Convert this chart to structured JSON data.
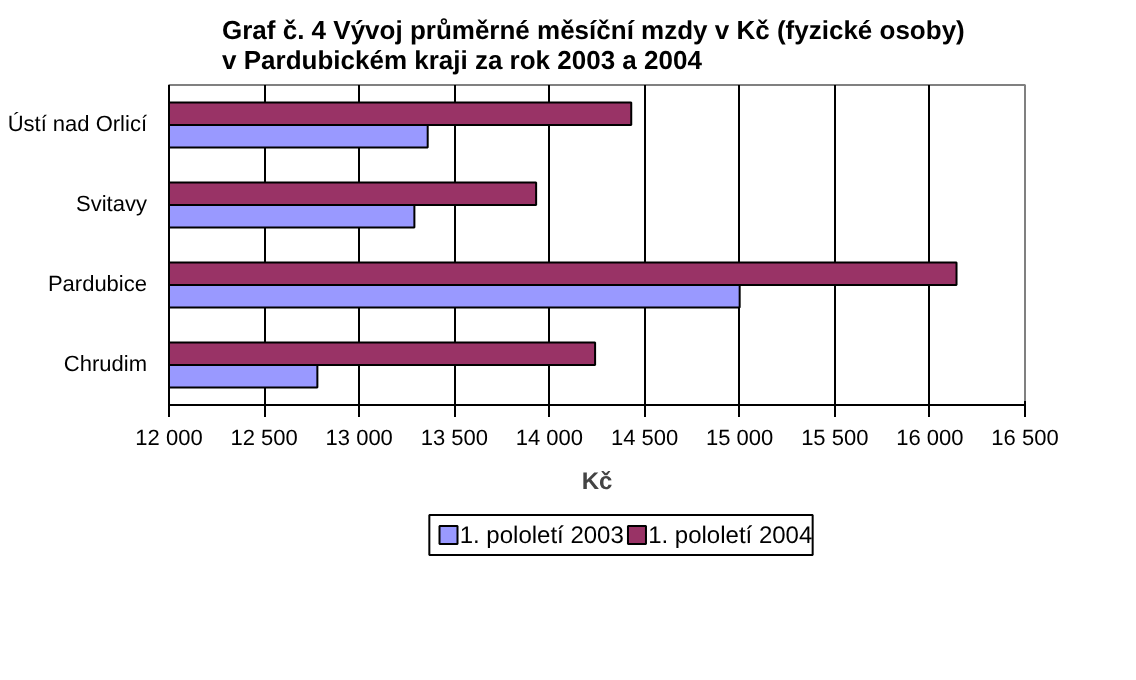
{
  "chart_data": {
    "type": "bar",
    "orientation": "horizontal",
    "title": "Graf č. 4  Vývoj průměrné měsíční mzdy v Kč (fyzické osoby)\nv Pardubickém kraji za rok 2003 a 2004",
    "xlabel": "Kč",
    "categories": [
      "Ústí nad Orlicí",
      "Svitavy",
      "Pardubice",
      "Chrudim"
    ],
    "series": [
      {
        "name": "1. pololetí 2003",
        "color": "#9999ff",
        "values": [
          13360,
          13290,
          15000,
          12780
        ]
      },
      {
        "name": "1. pololetí 2004",
        "color": "#993366",
        "values": [
          14430,
          13930,
          16140,
          14240
        ]
      }
    ],
    "xlim": [
      12000,
      16500
    ],
    "xticks": [
      {
        "value": 12000,
        "label": "12 000"
      },
      {
        "value": 12500,
        "label": "12 500"
      },
      {
        "value": 13000,
        "label": "13 000"
      },
      {
        "value": 13500,
        "label": "13 500"
      },
      {
        "value": 14000,
        "label": "14 000"
      },
      {
        "value": 14500,
        "label": "14 500"
      },
      {
        "value": 15000,
        "label": "15 000"
      },
      {
        "value": 15500,
        "label": "15 500"
      },
      {
        "value": 16000,
        "label": "16 000"
      },
      {
        "value": 16500,
        "label": "16 500"
      }
    ],
    "grid": "x",
    "legend": "bottom"
  }
}
